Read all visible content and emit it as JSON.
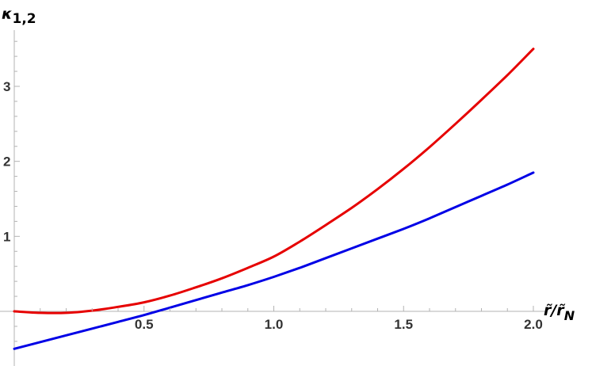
{
  "chart_data": {
    "type": "line",
    "title": "",
    "xlabel": "r̃/r̃",
    "xlabel_sub": "N",
    "ylabel": "κ",
    "ylabel_sub": "1,2",
    "xlim": [
      0,
      2.05
    ],
    "ylim": [
      -0.55,
      3.7
    ],
    "x_ticks": [
      0.5,
      1.0,
      1.5,
      2.0
    ],
    "x_tick_labels": [
      "0.5",
      "1.0",
      "1.5",
      "2.0"
    ],
    "y_ticks": [
      1,
      2,
      3
    ],
    "y_tick_labels": [
      "1",
      "2",
      "3"
    ],
    "grid": false,
    "series": [
      {
        "color": "#e60000",
        "x": [
          0,
          0.1,
          0.2,
          0.3,
          0.4,
          0.5,
          0.6,
          0.7,
          0.8,
          0.9,
          1.0,
          1.1,
          1.2,
          1.3,
          1.4,
          1.5,
          1.6,
          1.7,
          1.8,
          1.9,
          2.0
        ],
        "y": [
          0.0,
          -0.02,
          -0.02,
          0.01,
          0.06,
          0.12,
          0.21,
          0.32,
          0.44,
          0.58,
          0.73,
          0.93,
          1.15,
          1.38,
          1.63,
          1.9,
          2.19,
          2.5,
          2.82,
          3.15,
          3.5
        ]
      },
      {
        "color": "#0000e6",
        "x": [
          0,
          0.1,
          0.2,
          0.3,
          0.4,
          0.5,
          0.6,
          0.7,
          0.8,
          0.9,
          1.0,
          1.1,
          1.2,
          1.3,
          1.4,
          1.5,
          1.6,
          1.7,
          1.8,
          1.9,
          2.0
        ],
        "y": [
          -0.5,
          -0.41,
          -0.32,
          -0.23,
          -0.14,
          -0.05,
          0.05,
          0.15,
          0.25,
          0.35,
          0.46,
          0.58,
          0.71,
          0.84,
          0.97,
          1.1,
          1.24,
          1.39,
          1.54,
          1.69,
          1.85
        ]
      }
    ]
  }
}
